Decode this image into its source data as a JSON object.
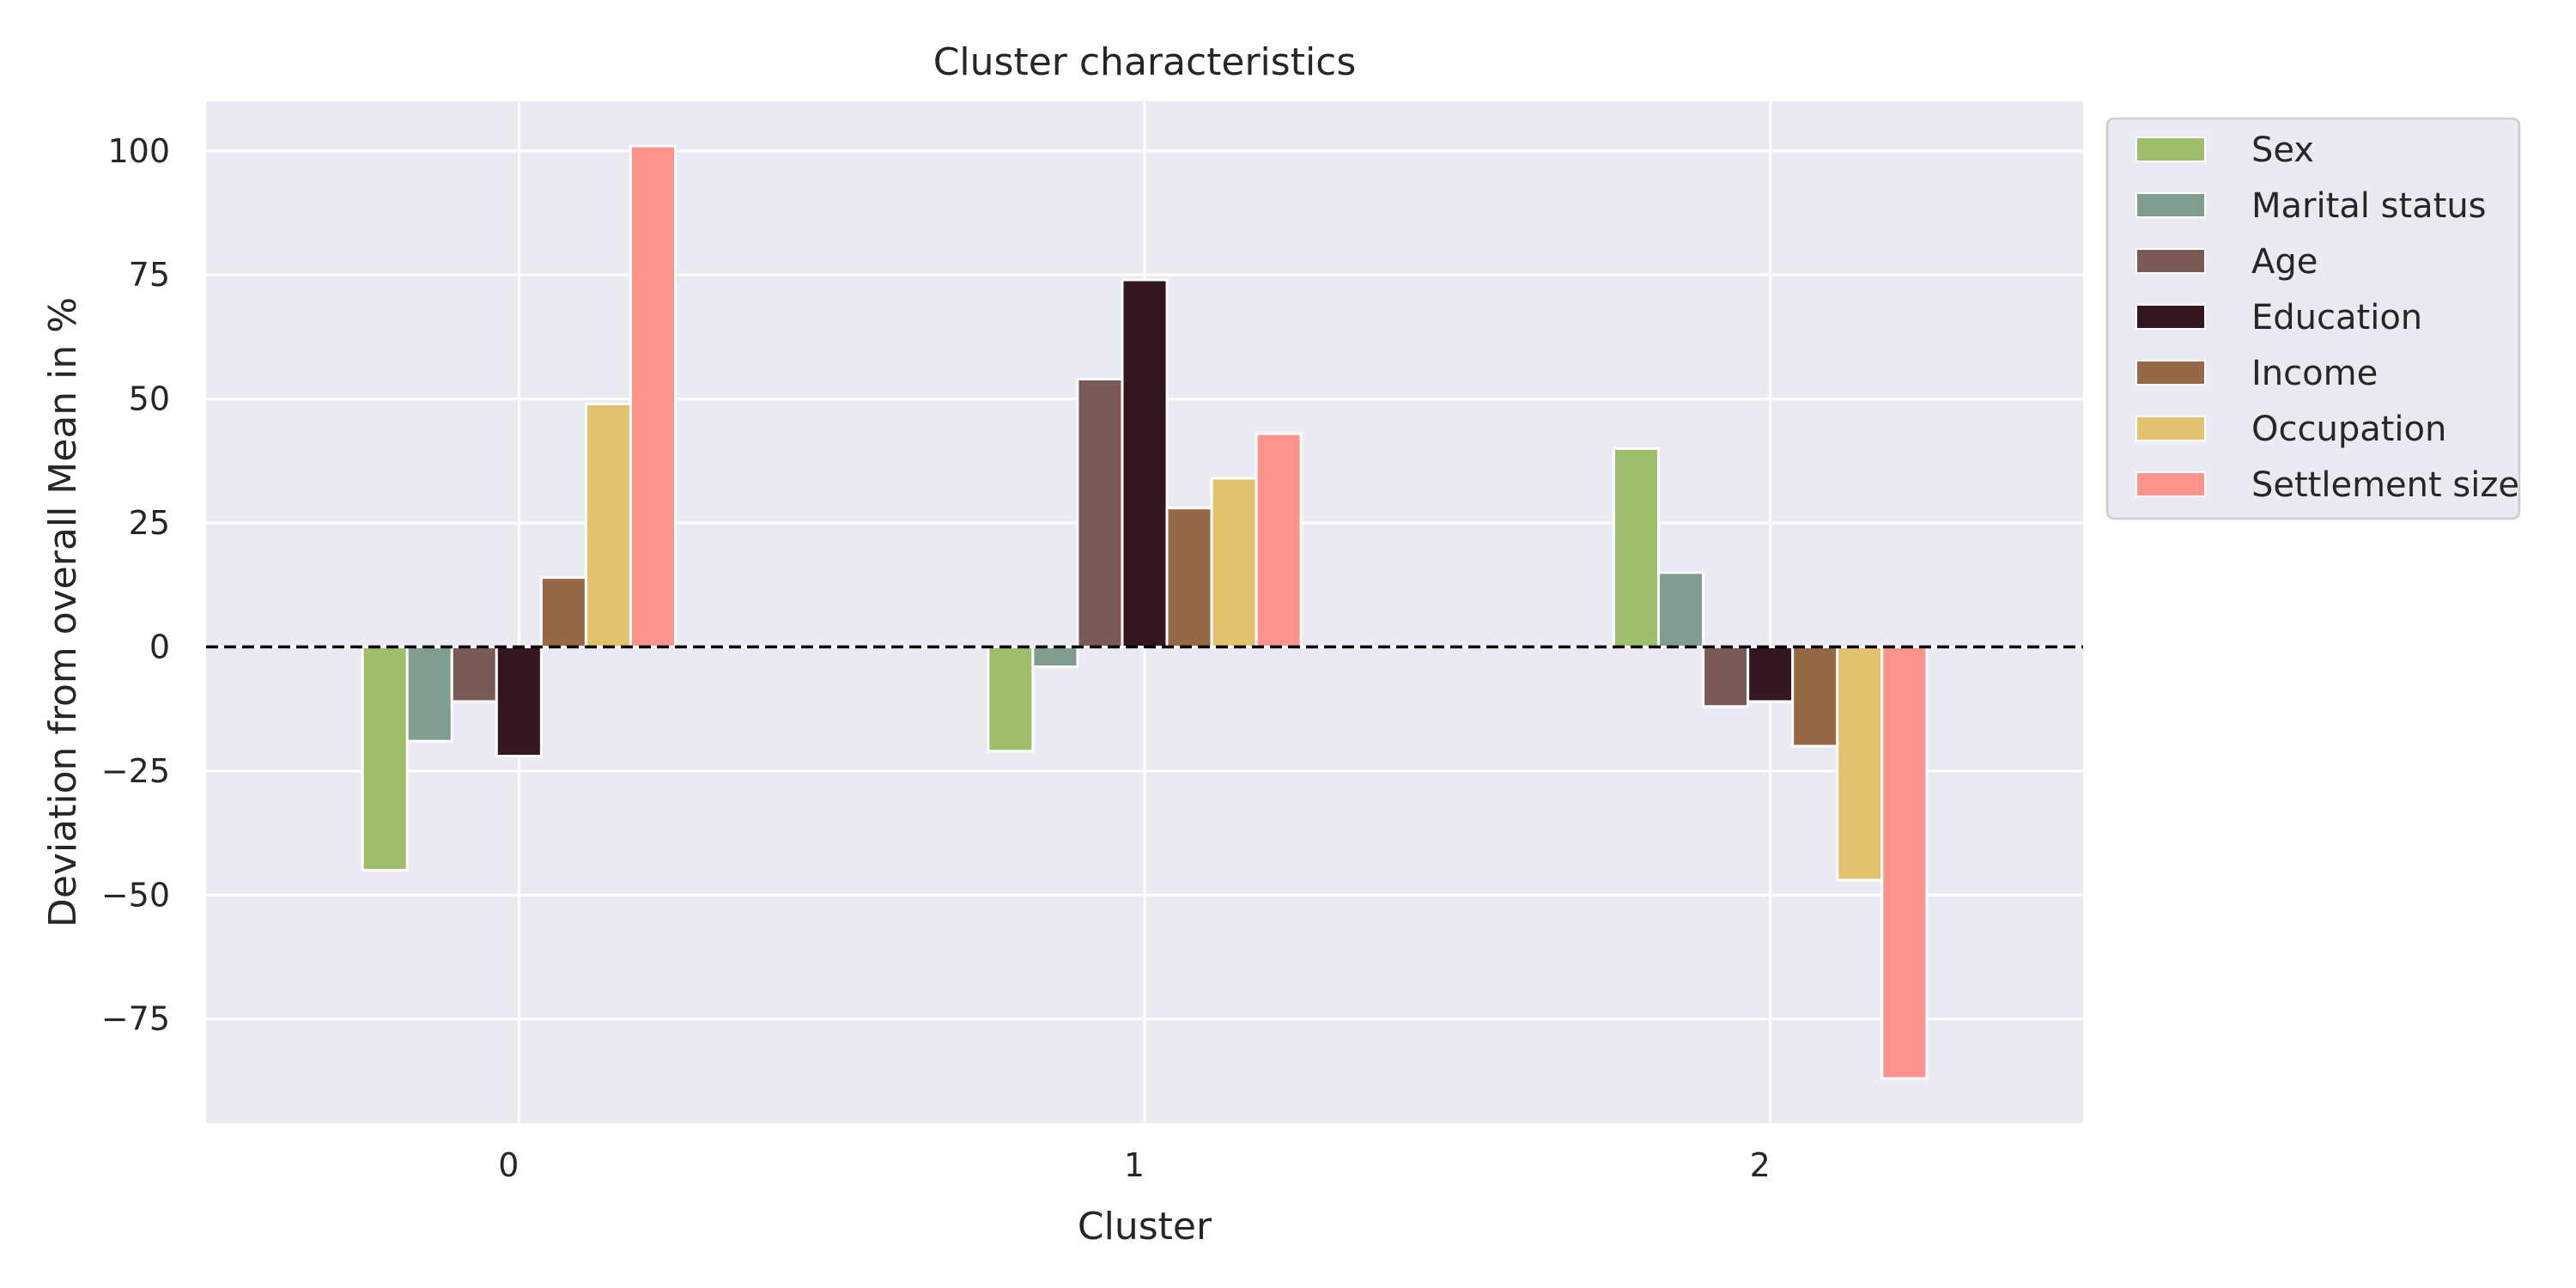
{
  "chart_data": {
    "type": "bar",
    "title": "Cluster characteristics",
    "xlabel": "Cluster",
    "ylabel": "Deviation from overall Mean in %",
    "categories": [
      "0",
      "1",
      "2"
    ],
    "ylim": [
      -96,
      110
    ],
    "yticks": [
      100,
      75,
      50,
      25,
      0,
      -25,
      -50,
      -75
    ],
    "ytick_labels": [
      "100",
      "75",
      "50",
      "25",
      "0",
      "−25",
      "−50",
      "−75"
    ],
    "grid": true,
    "reference_line": 0,
    "legend_position": "outside-top-right",
    "series": [
      {
        "name": "Sex",
        "color": "#9ebe6b",
        "values": [
          -45,
          -21,
          40
        ]
      },
      {
        "name": "Marital status",
        "color": "#7f9e8f",
        "values": [
          -19,
          -4,
          15
        ]
      },
      {
        "name": "Age",
        "color": "#7a5a56",
        "values": [
          -11,
          54,
          -12
        ]
      },
      {
        "name": "Education",
        "color": "#33161f",
        "values": [
          -22,
          74,
          -11
        ]
      },
      {
        "name": "Income",
        "color": "#956846",
        "values": [
          14,
          28,
          -20
        ]
      },
      {
        "name": "Occupation",
        "color": "#e3c26e",
        "values": [
          49,
          34,
          -47
        ]
      },
      {
        "name": "Settlement size",
        "color": "#fe938c",
        "values": [
          101,
          43,
          -87
        ]
      }
    ]
  }
}
